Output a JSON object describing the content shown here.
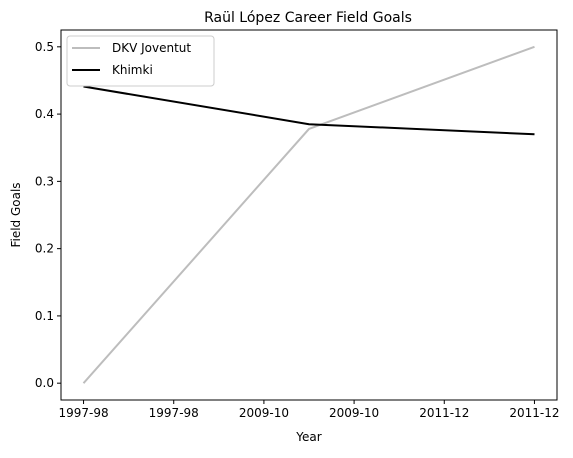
{
  "chart_data": {
    "type": "line",
    "title": "Raül López Career Field Goals",
    "xlabel": "Year",
    "ylabel": "Field Goals",
    "categories": [
      "1997-98",
      "1997-98",
      "2009-10",
      "2009-10",
      "2011-12",
      "2011-12"
    ],
    "ylim": [
      -0.025,
      0.525
    ],
    "yticks": [
      0.0,
      0.1,
      0.2,
      0.3,
      0.4,
      0.5
    ],
    "ytick_labels": [
      "0.0",
      "0.1",
      "0.2",
      "0.3",
      "0.4",
      "0.5"
    ],
    "legend_position": "top-left",
    "grid": false,
    "series": [
      {
        "name": "DKV Joventut",
        "color": "#bdbdbd",
        "x": [
          0,
          2.5,
          5
        ],
        "values": [
          0.0,
          0.378,
          0.5
        ]
      },
      {
        "name": "Khimki",
        "color": "#000000",
        "x": [
          0,
          2.5,
          5
        ],
        "values": [
          0.441,
          0.385,
          0.37
        ]
      }
    ]
  }
}
